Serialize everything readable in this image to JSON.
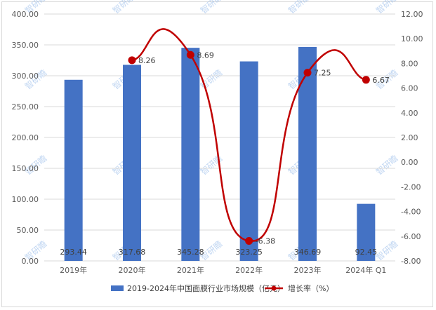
{
  "chart_data": {
    "type": "bar+line",
    "categories": [
      "2019年",
      "2020年",
      "2021年",
      "2022年",
      "2023年",
      "2024年 Q1"
    ],
    "series": [
      {
        "name": "2019-2024年中国面膜行业市场规模（亿元）",
        "type": "bar",
        "axis": "left",
        "color": "#4472c4",
        "values": [
          293.44,
          317.68,
          345.28,
          323.25,
          346.69,
          92.45
        ],
        "labels": [
          "293.44",
          "317.68",
          "345.28",
          "323.25",
          "346.69",
          "92.45"
        ]
      },
      {
        "name": "增长率（%）",
        "type": "line",
        "axis": "right",
        "color": "#c00000",
        "values": [
          null,
          8.26,
          8.69,
          -6.38,
          7.25,
          6.67
        ],
        "labels": [
          "",
          "8.26",
          "8.69",
          "-6.38",
          "7.25",
          "6.67"
        ]
      }
    ],
    "left_axis": {
      "min": 0,
      "max": 400,
      "step": 50,
      "tick_labels": [
        "0.00",
        "50.00",
        "100.00",
        "150.00",
        "200.00",
        "250.00",
        "300.00",
        "350.00",
        "400.00"
      ]
    },
    "right_axis": {
      "min": -8,
      "max": 12,
      "step": 2,
      "tick_labels": [
        "-8.00",
        "-6.00",
        "-4.00",
        "-2.00",
        "0.00",
        "2.00",
        "4.00",
        "6.00",
        "8.00",
        "10.00",
        "12.00"
      ]
    },
    "gridlines": true,
    "legend_position": "bottom",
    "watermark_text": "智研瞻"
  }
}
